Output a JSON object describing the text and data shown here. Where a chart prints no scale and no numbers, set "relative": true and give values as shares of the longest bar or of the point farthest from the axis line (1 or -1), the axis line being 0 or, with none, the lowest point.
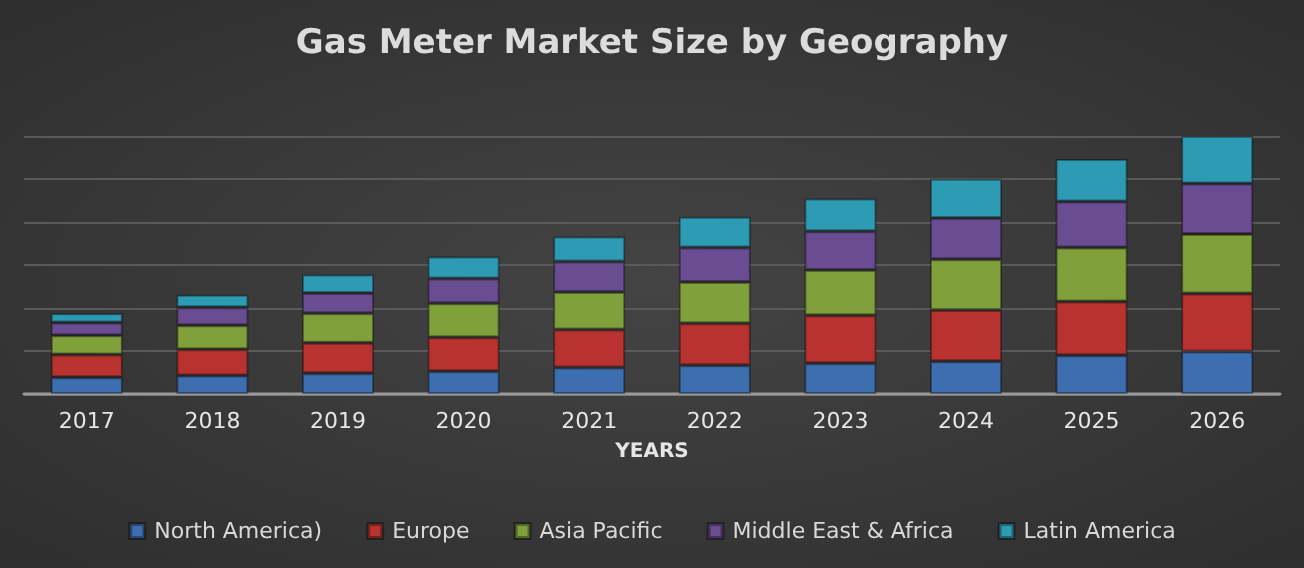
{
  "chart_data": {
    "type": "bar",
    "title": "Gas Meter Market Size by Geography",
    "xlabel": "YEARS",
    "stacked": true,
    "relative": true,
    "grid": "y",
    "legend": "bottom",
    "categories": [
      "2017",
      "2018",
      "2019",
      "2020",
      "2021",
      "2022",
      "2023",
      "2024",
      "2025",
      "2026"
    ],
    "series": [
      {
        "name": "North America)",
        "color": "#3d6fb0",
        "values": [
          0.065,
          0.072,
          0.08,
          0.088,
          0.103,
          0.111,
          0.119,
          0.127,
          0.15,
          0.165
        ]
      },
      {
        "name": "Europe",
        "color": "#b83230",
        "values": [
          0.088,
          0.101,
          0.119,
          0.132,
          0.147,
          0.163,
          0.186,
          0.199,
          0.209,
          0.225
        ]
      },
      {
        "name": "Asia Pacific",
        "color": "#7fa03a",
        "values": [
          0.075,
          0.093,
          0.114,
          0.132,
          0.145,
          0.16,
          0.176,
          0.196,
          0.209,
          0.23
        ]
      },
      {
        "name": "Middle East & Africa",
        "color": "#6a4c93",
        "values": [
          0.049,
          0.07,
          0.078,
          0.096,
          0.119,
          0.134,
          0.15,
          0.16,
          0.178,
          0.196
        ]
      },
      {
        "name": "Latin America",
        "color": "#2e9bb5",
        "values": [
          0.036,
          0.049,
          0.072,
          0.085,
          0.096,
          0.119,
          0.127,
          0.152,
          0.165,
          0.184
        ]
      }
    ]
  }
}
